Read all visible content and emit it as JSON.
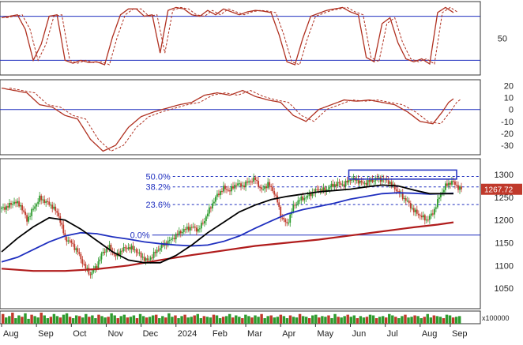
{
  "chart_data": {
    "type": "line",
    "colors": {
      "price_up": "#2e9b2e",
      "price_down": "#c0392b",
      "osc_main": "#b03020",
      "osc_signal": "#b03020",
      "ma_short": "#000000",
      "ma_mid": "#1f2fbf",
      "ma_long": "#b01c1c",
      "fib_line": "#1f2fbf",
      "fib_text": "#1f2fbf",
      "ref_line": "#1f2fbf",
      "current_badge": "#c0392b",
      "panel_border": "#333333"
    },
    "x_axis": {
      "labels": [
        "Aug",
        "Sep",
        "Oct",
        "Nov",
        "Dec",
        "2024",
        "Feb",
        "Mar",
        "Apr",
        "May",
        "Jun",
        "Jul",
        "Aug",
        "Sep"
      ],
      "label_index": [
        0,
        22,
        44,
        66,
        88,
        110,
        132,
        154,
        176,
        198,
        220,
        242,
        264,
        283
      ]
    },
    "panels": {
      "stochastic": {
        "ylim": [
          0,
          100
        ],
        "yticks": [
          50
        ],
        "levels": [
          80,
          20
        ],
        "points": [
          [
            0,
            78
          ],
          [
            5,
            80
          ],
          [
            10,
            82
          ],
          [
            15,
            62
          ],
          [
            20,
            20
          ],
          [
            25,
            42
          ],
          [
            30,
            80
          ],
          [
            35,
            82
          ],
          [
            40,
            20
          ],
          [
            45,
            16
          ],
          [
            50,
            20
          ],
          [
            55,
            17
          ],
          [
            60,
            18
          ],
          [
            65,
            14
          ],
          [
            70,
            52
          ],
          [
            75,
            82
          ],
          [
            80,
            90
          ],
          [
            85,
            90
          ],
          [
            90,
            80
          ],
          [
            95,
            82
          ],
          [
            100,
            30
          ],
          [
            105,
            88
          ],
          [
            110,
            92
          ],
          [
            115,
            90
          ],
          [
            120,
            82
          ],
          [
            125,
            80
          ],
          [
            130,
            88
          ],
          [
            135,
            82
          ],
          [
            140,
            90
          ],
          [
            145,
            86
          ],
          [
            150,
            82
          ],
          [
            155,
            86
          ],
          [
            160,
            88
          ],
          [
            165,
            87
          ],
          [
            170,
            85
          ],
          [
            175,
            55
          ],
          [
            180,
            18
          ],
          [
            185,
            14
          ],
          [
            190,
            50
          ],
          [
            195,
            80
          ],
          [
            200,
            84
          ],
          [
            205,
            88
          ],
          [
            210,
            90
          ],
          [
            215,
            92
          ],
          [
            220,
            86
          ],
          [
            225,
            82
          ],
          [
            230,
            24
          ],
          [
            235,
            18
          ],
          [
            240,
            70
          ],
          [
            245,
            78
          ],
          [
            250,
            44
          ],
          [
            255,
            22
          ],
          [
            260,
            18
          ],
          [
            265,
            22
          ],
          [
            270,
            15
          ],
          [
            275,
            85
          ],
          [
            280,
            92
          ],
          [
            285,
            85
          ]
        ]
      },
      "momentum": {
        "ylim": [
          -38,
          25
        ],
        "yticks": [
          20,
          10,
          0,
          -10,
          -20,
          -30
        ],
        "levels": [
          0
        ],
        "points": [
          [
            0,
            18
          ],
          [
            8,
            16
          ],
          [
            16,
            14
          ],
          [
            24,
            4
          ],
          [
            32,
            2
          ],
          [
            40,
            -5
          ],
          [
            48,
            -8
          ],
          [
            56,
            -25
          ],
          [
            64,
            -35
          ],
          [
            72,
            -30
          ],
          [
            80,
            -15
          ],
          [
            88,
            -6
          ],
          [
            96,
            -2
          ],
          [
            104,
            1
          ],
          [
            112,
            4
          ],
          [
            120,
            6
          ],
          [
            128,
            12
          ],
          [
            136,
            14
          ],
          [
            144,
            12
          ],
          [
            152,
            16
          ],
          [
            160,
            11
          ],
          [
            168,
            8
          ],
          [
            176,
            6
          ],
          [
            184,
            -5
          ],
          [
            192,
            -10
          ],
          [
            200,
            0
          ],
          [
            208,
            4
          ],
          [
            216,
            8
          ],
          [
            224,
            7
          ],
          [
            232,
            8
          ],
          [
            240,
            6
          ],
          [
            248,
            4
          ],
          [
            256,
            -2
          ],
          [
            264,
            -10
          ],
          [
            272,
            -12
          ],
          [
            278,
            -2
          ],
          [
            282,
            6
          ],
          [
            285,
            9
          ]
        ]
      },
      "price": {
        "ylim": [
          1005,
          1335
        ],
        "yticks": [
          1300,
          1250,
          1200,
          1150,
          1100,
          1050
        ],
        "current_value": "1267.72",
        "fib_levels": [
          {
            "label": "50.0%",
            "value": 1296
          },
          {
            "label": "38.2%",
            "value": 1273
          },
          {
            "label": "23.6%",
            "value": 1234
          },
          {
            "label": "0.0%",
            "value": 1167
          }
        ],
        "points": [
          [
            0,
            1225
          ],
          [
            4,
            1230
          ],
          [
            8,
            1240
          ],
          [
            12,
            1232
          ],
          [
            16,
            1200
          ],
          [
            20,
            1225
          ],
          [
            24,
            1248
          ],
          [
            28,
            1240
          ],
          [
            32,
            1230
          ],
          [
            36,
            1210
          ],
          [
            40,
            1160
          ],
          [
            44,
            1150
          ],
          [
            48,
            1130
          ],
          [
            52,
            1100
          ],
          [
            56,
            1080
          ],
          [
            60,
            1100
          ],
          [
            64,
            1130
          ],
          [
            68,
            1140
          ],
          [
            72,
            1120
          ],
          [
            76,
            1135
          ],
          [
            80,
            1140
          ],
          [
            84,
            1135
          ],
          [
            88,
            1120
          ],
          [
            92,
            1110
          ],
          [
            96,
            1125
          ],
          [
            100,
            1140
          ],
          [
            104,
            1150
          ],
          [
            108,
            1160
          ],
          [
            112,
            1172
          ],
          [
            116,
            1180
          ],
          [
            120,
            1185
          ],
          [
            124,
            1178
          ],
          [
            128,
            1200
          ],
          [
            132,
            1230
          ],
          [
            136,
            1255
          ],
          [
            140,
            1270
          ],
          [
            144,
            1265
          ],
          [
            148,
            1280
          ],
          [
            152,
            1275
          ],
          [
            156,
            1285
          ],
          [
            160,
            1290
          ],
          [
            164,
            1265
          ],
          [
            168,
            1280
          ],
          [
            172,
            1260
          ],
          [
            174,
            1240
          ],
          [
            176,
            1210
          ],
          [
            180,
            1190
          ],
          [
            184,
            1230
          ],
          [
            188,
            1245
          ],
          [
            192,
            1250
          ],
          [
            196,
            1260
          ],
          [
            200,
            1268
          ],
          [
            204,
            1265
          ],
          [
            208,
            1275
          ],
          [
            212,
            1280
          ],
          [
            216,
            1278
          ],
          [
            220,
            1290
          ],
          [
            224,
            1288
          ],
          [
            228,
            1280
          ],
          [
            232,
            1285
          ],
          [
            236,
            1290
          ],
          [
            240,
            1290
          ],
          [
            244,
            1285
          ],
          [
            248,
            1270
          ],
          [
            252,
            1255
          ],
          [
            256,
            1240
          ],
          [
            260,
            1220
          ],
          [
            264,
            1210
          ],
          [
            268,
            1200
          ],
          [
            272,
            1215
          ],
          [
            276,
            1250
          ],
          [
            280,
            1275
          ],
          [
            284,
            1285
          ],
          [
            288,
            1272
          ],
          [
            290,
            1267.72
          ]
        ],
        "ma_short": [
          [
            0,
            1130
          ],
          [
            10,
            1160
          ],
          [
            20,
            1185
          ],
          [
            30,
            1205
          ],
          [
            40,
            1200
          ],
          [
            50,
            1180
          ],
          [
            60,
            1155
          ],
          [
            70,
            1130
          ],
          [
            80,
            1112
          ],
          [
            90,
            1106
          ],
          [
            100,
            1106
          ],
          [
            110,
            1122
          ],
          [
            120,
            1145
          ],
          [
            130,
            1172
          ],
          [
            140,
            1195
          ],
          [
            150,
            1218
          ],
          [
            160,
            1233
          ],
          [
            170,
            1245
          ],
          [
            180,
            1252
          ],
          [
            190,
            1257
          ],
          [
            200,
            1262
          ],
          [
            210,
            1265
          ],
          [
            220,
            1268
          ],
          [
            230,
            1273
          ],
          [
            240,
            1277
          ],
          [
            250,
            1275
          ],
          [
            260,
            1266
          ],
          [
            270,
            1258
          ],
          [
            285,
            1258
          ]
        ],
        "ma_mid": [
          [
            0,
            1108
          ],
          [
            10,
            1118
          ],
          [
            20,
            1135
          ],
          [
            30,
            1152
          ],
          [
            40,
            1165
          ],
          [
            50,
            1172
          ],
          [
            60,
            1170
          ],
          [
            70,
            1163
          ],
          [
            80,
            1158
          ],
          [
            90,
            1152
          ],
          [
            100,
            1148
          ],
          [
            110,
            1145
          ],
          [
            120,
            1143
          ],
          [
            130,
            1145
          ],
          [
            140,
            1153
          ],
          [
            150,
            1165
          ],
          [
            160,
            1182
          ],
          [
            170,
            1198
          ],
          [
            180,
            1213
          ],
          [
            190,
            1223
          ],
          [
            200,
            1230
          ],
          [
            210,
            1237
          ],
          [
            220,
            1246
          ],
          [
            230,
            1252
          ],
          [
            240,
            1258
          ],
          [
            250,
            1260
          ],
          [
            260,
            1259
          ],
          [
            270,
            1257
          ],
          [
            285,
            1259
          ]
        ],
        "ma_long": [
          [
            0,
            1093
          ],
          [
            20,
            1088
          ],
          [
            40,
            1088
          ],
          [
            60,
            1092
          ],
          [
            80,
            1100
          ],
          [
            100,
            1112
          ],
          [
            120,
            1123
          ],
          [
            140,
            1133
          ],
          [
            160,
            1143
          ],
          [
            180,
            1150
          ],
          [
            200,
            1157
          ],
          [
            220,
            1166
          ],
          [
            240,
            1175
          ],
          [
            260,
            1184
          ],
          [
            275,
            1190
          ],
          [
            285,
            1195
          ]
        ],
        "box": {
          "x0": 219,
          "x1": 287,
          "y0": 1290,
          "y1": 1310
        }
      },
      "volume": {
        "unit_label": "x100000",
        "values": [
          1.4,
          0.9,
          1.1,
          1.6,
          0.8,
          1.2,
          1.0,
          1.5,
          0.7,
          1.3,
          1.1,
          0.9,
          1.6,
          1.2,
          0.8,
          1.0,
          1.4,
          1.1,
          0.9,
          1.3,
          1.5,
          1.0,
          0.8,
          1.2,
          1.1,
          0.9,
          1.4,
          1.0,
          1.2,
          0.8,
          1.3,
          1.1,
          0.9,
          1.0,
          1.5,
          1.2,
          0.8,
          1.1,
          1.3,
          0.9,
          1.0,
          1.2,
          0.8,
          1.4,
          1.1,
          0.9,
          1.0,
          1.2,
          1.3,
          0.8,
          1.1,
          0.9,
          1.5,
          1.0,
          1.2,
          0.8,
          1.1,
          1.3,
          0.9,
          1.0,
          1.2,
          1.4,
          0.8,
          1.1,
          1.0,
          0.9,
          1.3,
          1.2,
          0.8,
          1.0,
          1.1,
          1.4,
          0.9,
          1.2,
          1.0,
          0.8,
          1.3,
          1.1,
          0.9,
          1.2,
          1.0,
          1.4,
          0.8,
          1.1,
          1.2,
          0.9,
          1.0,
          1.3,
          1.1,
          0.8,
          1.2,
          1.0,
          0.9,
          1.4,
          1.1,
          1.0,
          0.8,
          1.2,
          1.3,
          0.9,
          1.1,
          1.0,
          1.2,
          0.8,
          1.4,
          1.0,
          0.9,
          1.1,
          1.3,
          1.0,
          1.2,
          0.8,
          1.1,
          0.9,
          1.0,
          1.3,
          1.2,
          0.8,
          1.0,
          1.1,
          0.9,
          1.4,
          1.2,
          1.0,
          0.8,
          1.1,
          1.3,
          0.9,
          1.0,
          1.2,
          1.1,
          0.8,
          1.0,
          1.4,
          0.9,
          1.2,
          1.1,
          1.0,
          0.8,
          1.3,
          1.2,
          0.9,
          1.0,
          1.1
        ]
      }
    }
  }
}
